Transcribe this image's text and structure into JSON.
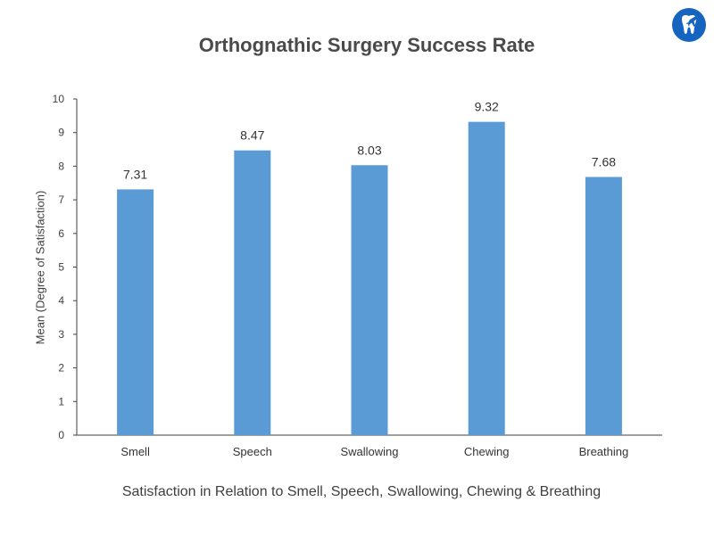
{
  "chart_data": {
    "type": "bar",
    "title": "Orthognathic Surgery Success Rate",
    "xlabel": "Satisfaction in Relation to Smell, Speech, Swallowing, Chewing & Breathing",
    "ylabel": "Mean (Degree of Satisfaction)",
    "categories": [
      "Smell",
      "Speech",
      "Swallowing",
      "Chewing",
      "Breathing"
    ],
    "values": [
      7.31,
      8.47,
      8.03,
      9.32,
      7.68
    ],
    "value_labels": [
      "7.31",
      "8.47",
      "8.03",
      "9.32",
      "7.68"
    ],
    "ylim": [
      0,
      10
    ],
    "yticks": [
      "0",
      "1",
      "2",
      "3",
      "4",
      "5",
      "6",
      "7",
      "8",
      "9",
      "10"
    ],
    "grid": false,
    "bar_color": "#5b9bd5",
    "axis_color": "#404040"
  },
  "logo": {
    "icon": "tooth-plane-logo-icon",
    "color": "#1565c0"
  }
}
